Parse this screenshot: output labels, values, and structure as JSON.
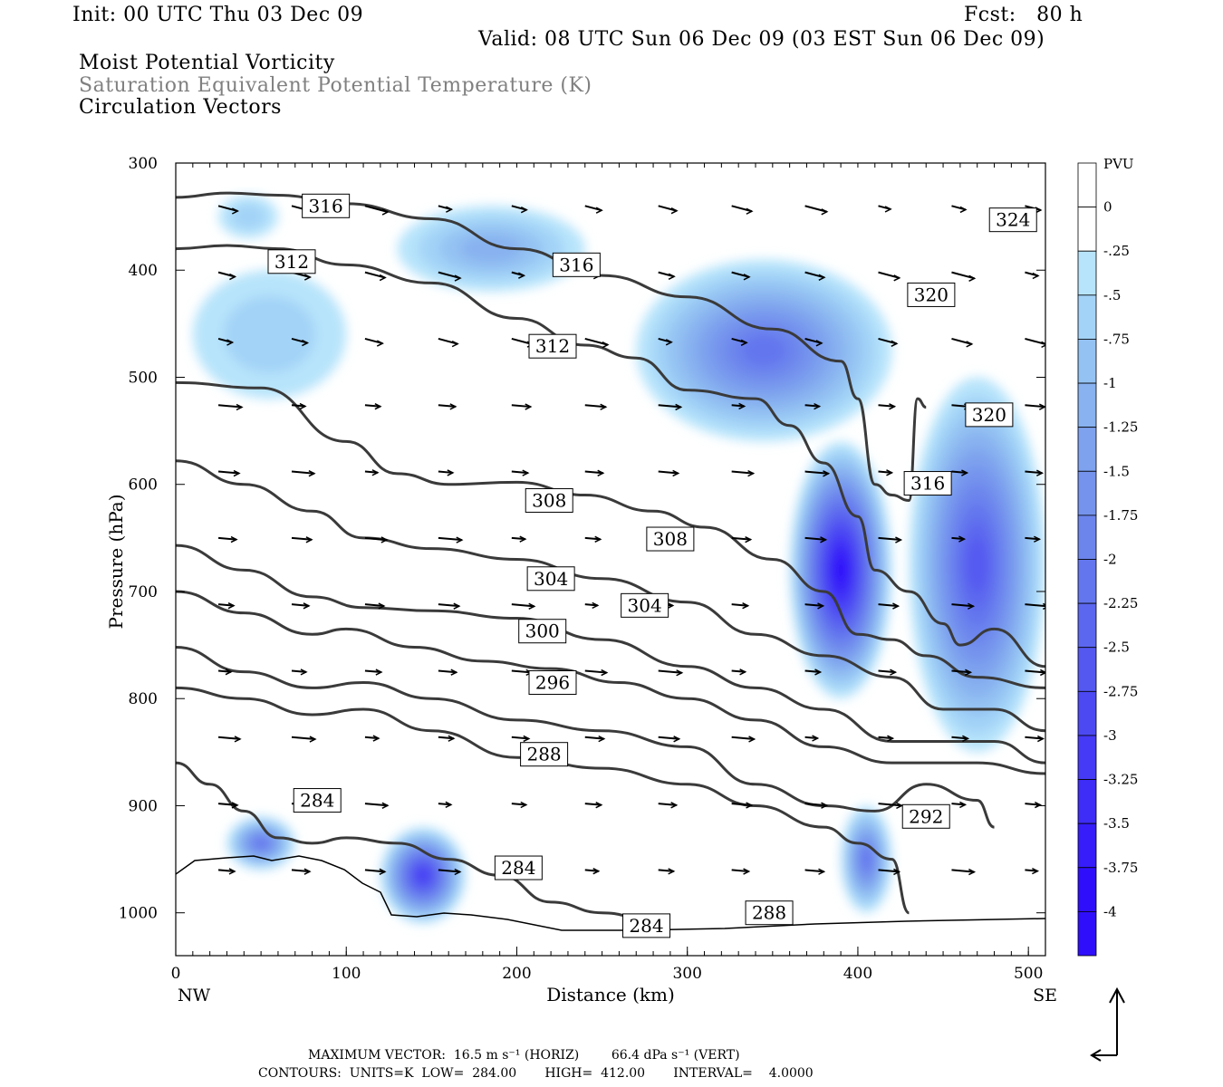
{
  "header": {
    "init": "Init: 00 UTC Thu 03 Dec 09",
    "fcst": "Fcst:   80 h",
    "valid": "Valid: 08 UTC Sun 06 Dec 09 (03 EST Sun 06 Dec 09)",
    "line1": "Moist Potential Vorticity",
    "line2": "Saturation Equivalent Potential Temperature (K)",
    "line3": "Circulation Vectors"
  },
  "footer": {
    "max_vector": "MAXIMUM VECTOR:  16.5 m s⁻¹ (HORIZ)        66.4 dPa s⁻¹ (VERT)",
    "contours": "CONTOURS:  UNITS=K  LOW=  284.00       HIGH=  412.00       INTERVAL=    4.0000"
  },
  "colors": {
    "contour": "#3a3a3a",
    "vector": "#000000",
    "shade_levels": [
      "#ffffff",
      "#b7e4fb",
      "#a3d3f7",
      "#94c2f3",
      "#88b2f0",
      "#7ea2ee",
      "#7593ed",
      "#6c85ed",
      "#6476ee",
      "#5c67ef",
      "#5458f1",
      "#4c49f3",
      "#453af5",
      "#3e2cf7",
      "#361df9",
      "#2f0efc"
    ]
  },
  "chart_data": {
    "type": "cross-section",
    "x_axis": {
      "label": "Distance (km)",
      "range": [
        0,
        510
      ],
      "ticks": [
        0,
        100,
        200,
        300,
        400,
        500
      ],
      "left_endpoint": "NW",
      "right_endpoint": "SE"
    },
    "y_axis": {
      "label": "Pressure (hPa)",
      "range": [
        1040,
        300
      ],
      "ticks": [
        300,
        400,
        500,
        600,
        700,
        800,
        900,
        1000
      ]
    },
    "colorbar": {
      "units": "PVU",
      "labels": [
        "0",
        "-.25",
        "-.5",
        "-.75",
        "-1",
        "-1.25",
        "-1.5",
        "-1.75",
        "-2",
        "-2.25",
        "-2.5",
        "-2.75",
        "-3",
        "-3.25",
        "-3.5",
        "-3.75",
        "-4"
      ],
      "bounds": [
        0.25,
        0,
        -0.25,
        -0.5,
        -0.75,
        -1,
        -1.25,
        -1.5,
        -1.75,
        -2,
        -2.25,
        -2.5,
        -2.75,
        -3,
        -3.25,
        -3.5,
        -3.75,
        -4
      ]
    },
    "contour_labels": [
      {
        "label": "316",
        "x": 88,
        "p": 340
      },
      {
        "label": "312",
        "x": 68,
        "p": 392
      },
      {
        "label": "316",
        "x": 235,
        "p": 395
      },
      {
        "label": "324",
        "x": 491,
        "p": 353
      },
      {
        "label": "320",
        "x": 443,
        "p": 423
      },
      {
        "label": "312",
        "x": 221,
        "p": 471
      },
      {
        "label": "320",
        "x": 477,
        "p": 535
      },
      {
        "label": "316",
        "x": 441,
        "p": 599
      },
      {
        "label": "308",
        "x": 219,
        "p": 615
      },
      {
        "label": "308",
        "x": 290,
        "p": 651
      },
      {
        "label": "304",
        "x": 220,
        "p": 688
      },
      {
        "label": "304",
        "x": 275,
        "p": 713
      },
      {
        "label": "300",
        "x": 215,
        "p": 737
      },
      {
        "label": "296",
        "x": 221,
        "p": 785
      },
      {
        "label": "288",
        "x": 216,
        "p": 852
      },
      {
        "label": "284",
        "x": 83,
        "p": 895
      },
      {
        "label": "292",
        "x": 440,
        "p": 910
      },
      {
        "label": "284",
        "x": 201,
        "p": 958
      },
      {
        "label": "288",
        "x": 348,
        "p": 1000
      },
      {
        "label": "284",
        "x": 276,
        "p": 1012
      }
    ],
    "contour_lines": [
      {
        "theta": 316,
        "points": [
          [
            0,
            332
          ],
          [
            30,
            328
          ],
          [
            60,
            330
          ],
          [
            100,
            338
          ],
          [
            150,
            352
          ],
          [
            200,
            380
          ],
          [
            250,
            405
          ],
          [
            300,
            425
          ],
          [
            350,
            455
          ],
          [
            390,
            485
          ],
          [
            400,
            520
          ],
          [
            410,
            600
          ],
          [
            420,
            610
          ],
          [
            430,
            615
          ],
          [
            435,
            520
          ],
          [
            440,
            528
          ]
        ]
      },
      {
        "theta": 312,
        "points": [
          [
            0,
            380
          ],
          [
            30,
            377
          ],
          [
            60,
            380
          ],
          [
            100,
            395
          ],
          [
            150,
            412
          ],
          [
            200,
            445
          ],
          [
            240,
            470
          ],
          [
            270,
            482
          ],
          [
            300,
            512
          ],
          [
            340,
            520
          ],
          [
            360,
            545
          ],
          [
            380,
            580
          ],
          [
            400,
            630
          ],
          [
            410,
            680
          ],
          [
            430,
            700
          ],
          [
            450,
            730
          ],
          [
            460,
            750
          ],
          [
            480,
            735
          ],
          [
            510,
            770
          ]
        ]
      },
      {
        "theta": 308,
        "points": [
          [
            0,
            505
          ],
          [
            50,
            510
          ],
          [
            100,
            560
          ],
          [
            130,
            590
          ],
          [
            160,
            600
          ],
          [
            200,
            598
          ],
          [
            240,
            610
          ],
          [
            280,
            625
          ],
          [
            310,
            640
          ],
          [
            350,
            670
          ],
          [
            380,
            700
          ],
          [
            400,
            740
          ],
          [
            420,
            745
          ],
          [
            440,
            760
          ],
          [
            470,
            780
          ],
          [
            510,
            790
          ]
        ]
      },
      {
        "theta": 304,
        "points": [
          [
            0,
            578
          ],
          [
            40,
            600
          ],
          [
            80,
            625
          ],
          [
            110,
            650
          ],
          [
            150,
            660
          ],
          [
            200,
            670
          ],
          [
            250,
            688
          ],
          [
            300,
            710
          ],
          [
            340,
            740
          ],
          [
            380,
            760
          ],
          [
            420,
            780
          ],
          [
            450,
            810
          ],
          [
            480,
            810
          ],
          [
            510,
            830
          ]
        ]
      },
      {
        "theta": 300,
        "points": [
          [
            0,
            657
          ],
          [
            40,
            680
          ],
          [
            80,
            705
          ],
          [
            110,
            715
          ],
          [
            150,
            718
          ],
          [
            200,
            725
          ],
          [
            250,
            745
          ],
          [
            300,
            770
          ],
          [
            340,
            790
          ],
          [
            380,
            810
          ],
          [
            420,
            840
          ],
          [
            450,
            840
          ],
          [
            480,
            840
          ],
          [
            510,
            860
          ]
        ]
      },
      {
        "theta": 296,
        "points": [
          [
            0,
            700
          ],
          [
            40,
            720
          ],
          [
            80,
            740
          ],
          [
            100,
            735
          ],
          [
            140,
            752
          ],
          [
            180,
            765
          ],
          [
            220,
            772
          ],
          [
            260,
            785
          ],
          [
            300,
            800
          ],
          [
            340,
            820
          ],
          [
            380,
            845
          ],
          [
            420,
            860
          ],
          [
            470,
            860
          ],
          [
            510,
            870
          ]
        ]
      },
      {
        "theta": 292,
        "points": [
          [
            0,
            752
          ],
          [
            40,
            775
          ],
          [
            80,
            790
          ],
          [
            110,
            785
          ],
          [
            150,
            800
          ],
          [
            200,
            820
          ],
          [
            250,
            830
          ],
          [
            300,
            845
          ],
          [
            340,
            880
          ],
          [
            380,
            900
          ],
          [
            410,
            905
          ],
          [
            440,
            880
          ],
          [
            470,
            895
          ],
          [
            480,
            920
          ]
        ]
      },
      {
        "theta": 288,
        "points": [
          [
            0,
            790
          ],
          [
            40,
            800
          ],
          [
            80,
            815
          ],
          [
            110,
            810
          ],
          [
            150,
            830
          ],
          [
            200,
            855
          ],
          [
            250,
            865
          ],
          [
            300,
            880
          ],
          [
            340,
            900
          ],
          [
            380,
            920
          ],
          [
            400,
            935
          ],
          [
            420,
            950
          ],
          [
            430,
            1000
          ]
        ]
      },
      {
        "theta": 284,
        "points": [
          [
            0,
            860
          ],
          [
            20,
            880
          ],
          [
            40,
            905
          ],
          [
            60,
            930
          ],
          [
            80,
            935
          ],
          [
            100,
            930
          ],
          [
            130,
            935
          ],
          [
            160,
            950
          ],
          [
            190,
            965
          ],
          [
            220,
            990
          ],
          [
            250,
            1000
          ],
          [
            275,
            1005
          ]
        ]
      }
    ],
    "pv_regions": [
      {
        "x": [
          25,
          60
        ],
        "p": [
          330,
          370
        ],
        "min_pvu": -0.5
      },
      {
        "x": [
          10,
          100
        ],
        "p": [
          400,
          520
        ],
        "min_pvu": -0.5
      },
      {
        "x": [
          130,
          240
        ],
        "p": [
          340,
          420
        ],
        "min_pvu": -1.0
      },
      {
        "x": [
          270,
          420
        ],
        "p": [
          390,
          560
        ],
        "min_pvu": -2.0
      },
      {
        "x": [
          360,
          420
        ],
        "p": [
          560,
          800
        ],
        "min_pvu": -3.75
      },
      {
        "x": [
          430,
          510
        ],
        "p": [
          500,
          850
        ],
        "min_pvu": -2.5
      },
      {
        "x": [
          30,
          70
        ],
        "p": [
          910,
          960
        ],
        "min_pvu": -2.0
      },
      {
        "x": [
          120,
          170
        ],
        "p": [
          920,
          1010
        ],
        "min_pvu": -3.0
      },
      {
        "x": [
          390,
          420
        ],
        "p": [
          900,
          1000
        ],
        "min_pvu": -2.0
      }
    ]
  }
}
